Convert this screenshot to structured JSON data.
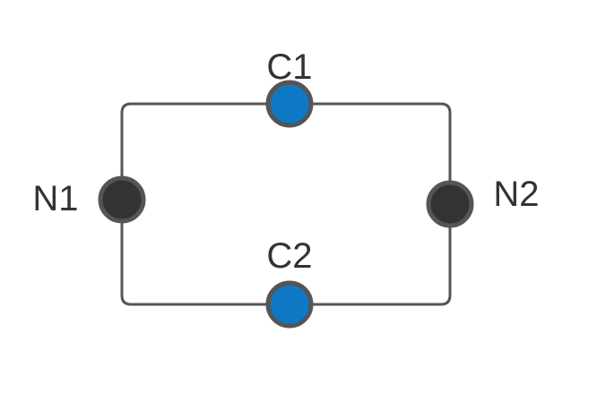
{
  "diagram": {
    "nodes": [
      {
        "id": "N1",
        "label": "N1",
        "kind": "terminal"
      },
      {
        "id": "N2",
        "label": "N2",
        "kind": "terminal"
      },
      {
        "id": "C1",
        "label": "C1",
        "kind": "component"
      },
      {
        "id": "C2",
        "label": "C2",
        "kind": "component"
      }
    ],
    "edges": [
      {
        "from": "N1",
        "to": "C1"
      },
      {
        "from": "C1",
        "to": "N2"
      },
      {
        "from": "N2",
        "to": "C2"
      },
      {
        "from": "C2",
        "to": "N1"
      }
    ]
  },
  "colors": {
    "terminal_fill": "#333333",
    "component_fill": "#0e78c4",
    "outline": "#555555",
    "label": "#333333"
  }
}
